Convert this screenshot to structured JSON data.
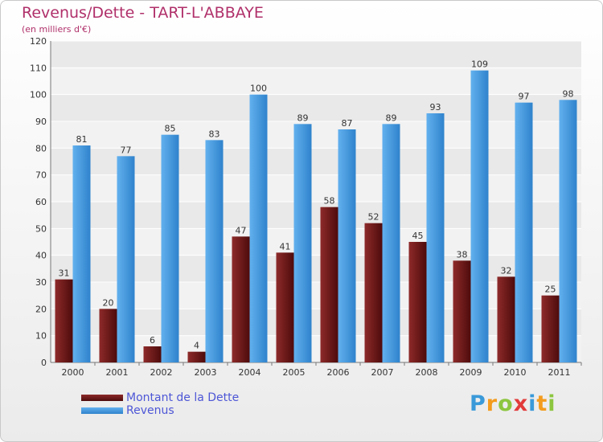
{
  "chart_data": {
    "type": "bar",
    "title": "Revenus/Dette - TART-L'ABBAYE",
    "subtitle": "(en milliers d'€)",
    "categories": [
      "2000",
      "2001",
      "2002",
      "2003",
      "2004",
      "2005",
      "2006",
      "2007",
      "2008",
      "2009",
      "2010",
      "2011"
    ],
    "series": [
      {
        "name": "Montant de la Dette",
        "color": "#7a1c1c",
        "values": [
          31,
          20,
          6,
          4,
          47,
          41,
          58,
          52,
          45,
          38,
          32,
          25
        ]
      },
      {
        "name": "Revenus",
        "color": "#4f9fe0",
        "values": [
          81,
          77,
          85,
          83,
          100,
          89,
          87,
          89,
          93,
          109,
          97,
          98
        ]
      }
    ],
    "ylim": [
      0,
      120
    ],
    "yticks": [
      0,
      10,
      20,
      30,
      40,
      50,
      60,
      70,
      80,
      90,
      100,
      110,
      120
    ],
    "grid": true,
    "legend": "bottom-left",
    "xlabel": "",
    "ylabel": ""
  },
  "logo": {
    "text": "Proxiti",
    "letters": [
      {
        "ch": "P",
        "color": "#3a9ad9"
      },
      {
        "ch": "r",
        "color": "#f39c1e"
      },
      {
        "ch": "o",
        "color": "#8cc63f"
      },
      {
        "ch": "x",
        "color": "#e23b3b"
      },
      {
        "ch": "i",
        "color": "#3a9ad9"
      },
      {
        "ch": "t",
        "color": "#f39c1e"
      },
      {
        "ch": "i",
        "color": "#8cc63f"
      }
    ]
  }
}
